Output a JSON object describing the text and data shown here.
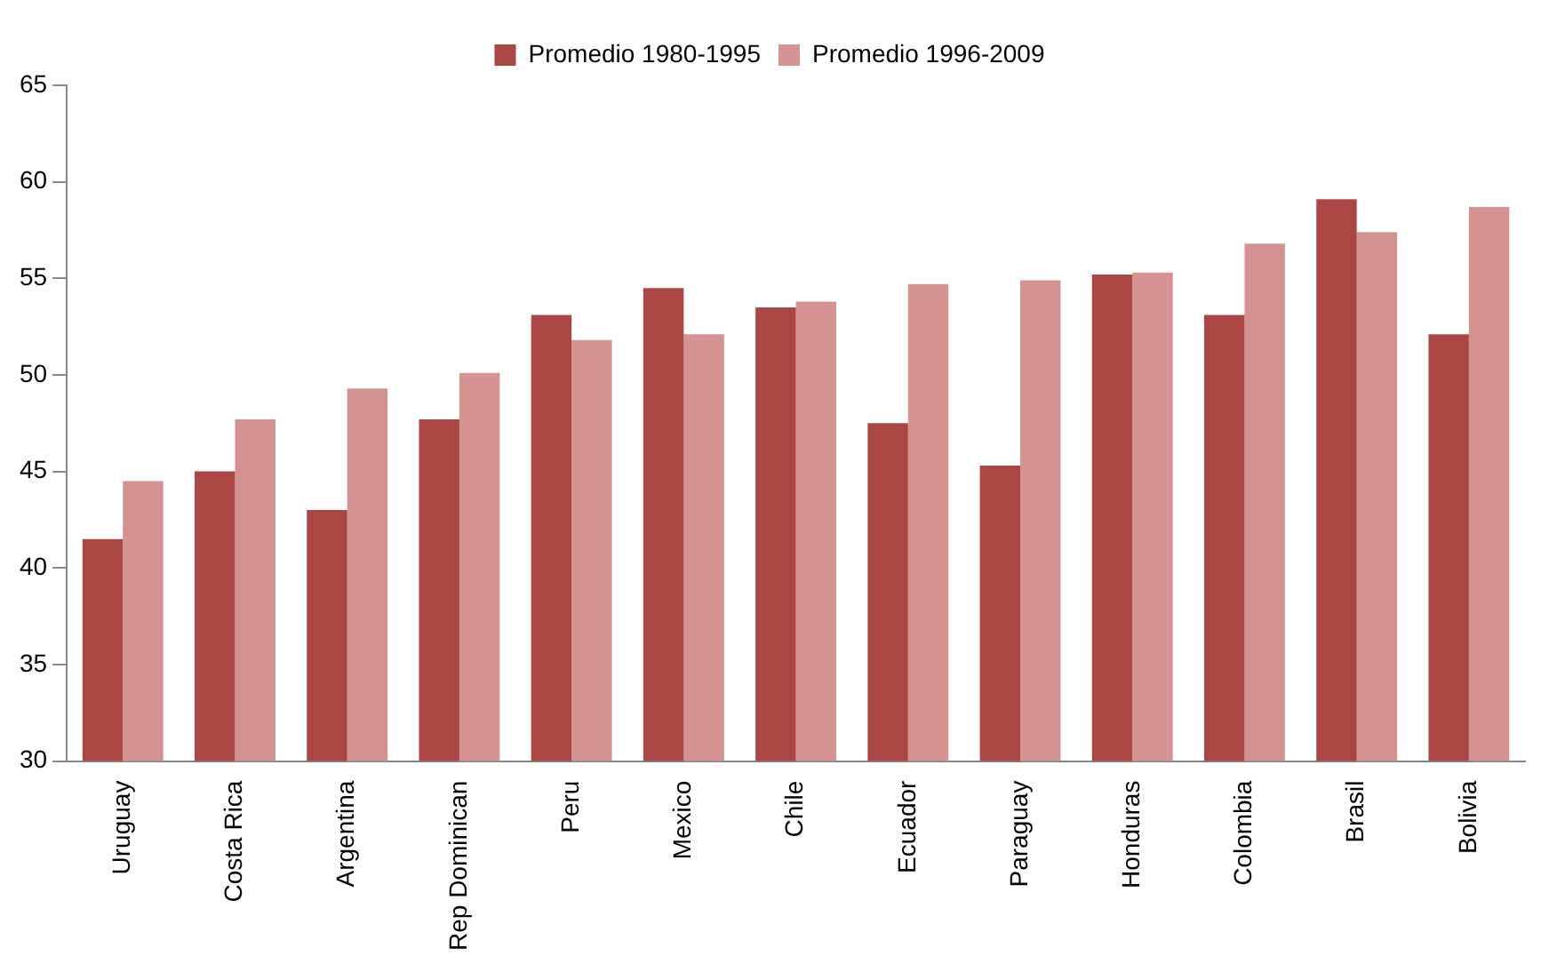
{
  "chart_data": {
    "type": "bar",
    "categories": [
      "Uruguay",
      "Costa Rica",
      "Argentina",
      "Rep Dominican",
      "Peru",
      "Mexico",
      "Chile",
      "Ecuador",
      "Paraguay",
      "Honduras",
      "Colombia",
      "Brasil",
      "Bolivia"
    ],
    "series": [
      {
        "name": "Promedio 1980-1995",
        "color": "#aa4644",
        "values": [
          41.5,
          45.0,
          43.0,
          47.7,
          53.1,
          54.5,
          53.5,
          47.5,
          45.3,
          55.2,
          53.1,
          59.1,
          52.1
        ]
      },
      {
        "name": "Promedio 1996-2009",
        "color": "#d49391",
        "values": [
          44.5,
          47.7,
          49.3,
          50.1,
          51.8,
          52.1,
          53.8,
          54.7,
          54.9,
          55.3,
          56.8,
          57.4,
          58.7
        ]
      }
    ],
    "ylim": [
      30,
      65
    ],
    "yticks": [
      30,
      35,
      40,
      45,
      50,
      55,
      60,
      65
    ],
    "grid": false,
    "legend": "top"
  }
}
